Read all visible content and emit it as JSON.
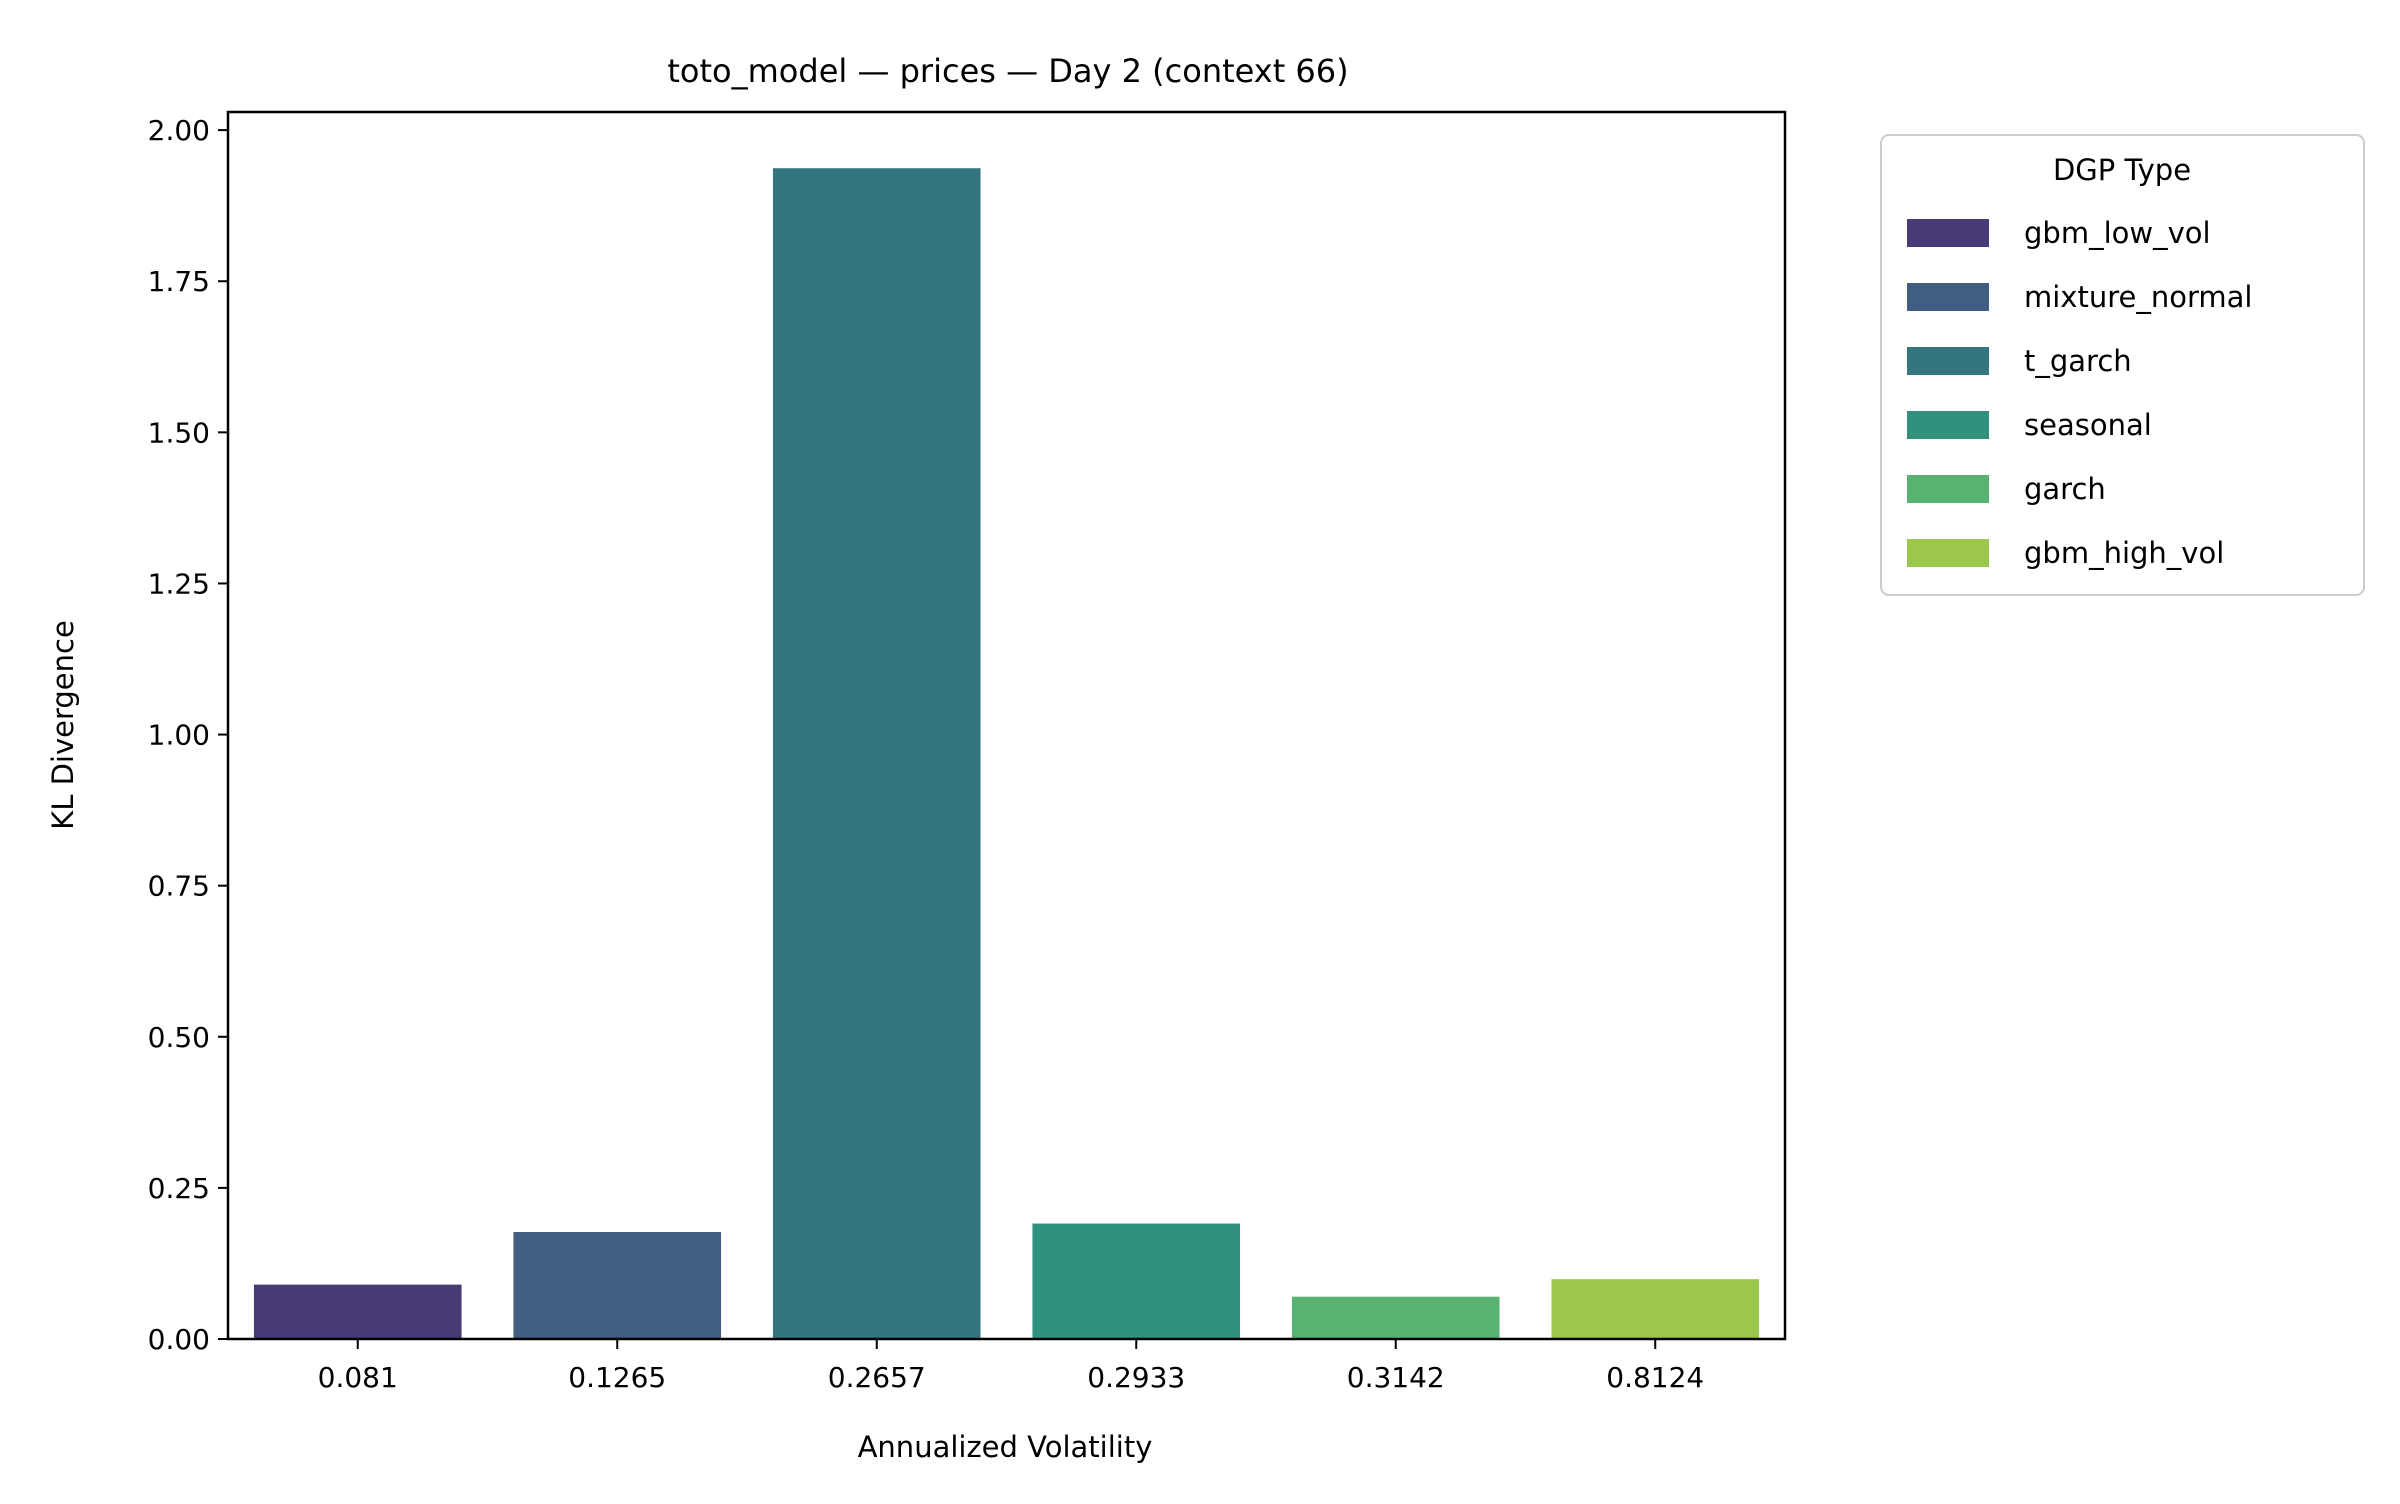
{
  "chart_data": {
    "type": "bar",
    "title": "toto_model — prices — Day 2 (context 66)",
    "xlabel": "Annualized Volatility",
    "ylabel": "KL Divergence",
    "categories": [
      "0.081",
      "0.1265",
      "0.2657",
      "0.2933",
      "0.3142",
      "0.8124"
    ],
    "values": [
      0.09,
      0.177,
      1.937,
      0.191,
      0.07,
      0.099
    ],
    "ylim": [
      0,
      2.03
    ],
    "yticks": [
      "0.00",
      "0.25",
      "0.50",
      "0.75",
      "1.00",
      "1.25",
      "1.50",
      "1.75",
      "2.00"
    ],
    "grid": false,
    "legend": {
      "title": "DGP Type",
      "position": "outside-right",
      "entries": [
        "gbm_low_vol",
        "mixture_normal",
        "t_garch",
        "seasonal",
        "garch",
        "gbm_high_vol"
      ]
    },
    "colors": [
      "#483a75",
      "#415e82",
      "#347680",
      "#30927d",
      "#58b372",
      "#9bc84c"
    ]
  }
}
